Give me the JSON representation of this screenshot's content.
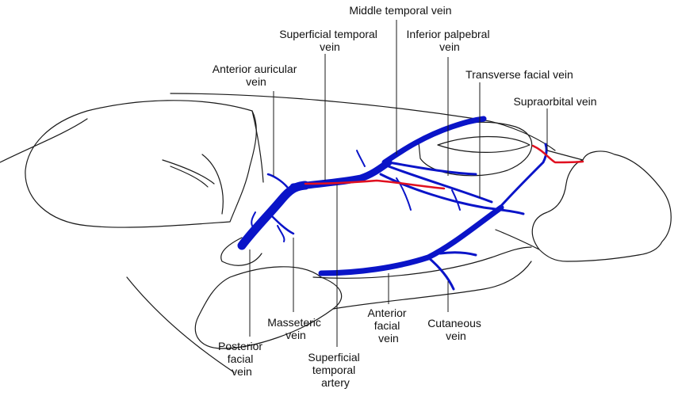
{
  "colors": {
    "vein": "#0a14c8",
    "artery": "#e01020",
    "outline": "#1a1a1a",
    "background": "#ffffff"
  },
  "labels": {
    "middle_temporal_vein": [
      "Middle temporal vein"
    ],
    "superficial_temporal_vein": [
      "Superficial temporal",
      "vein"
    ],
    "inferior_palpebral_vein": [
      "Inferior palpebral",
      "vein"
    ],
    "anterior_auricular_vein": [
      "Anterior auricular",
      "vein"
    ],
    "transverse_facial_vein": [
      "Transverse facial vein"
    ],
    "supraorbital_vein": [
      "Supraorbital vein"
    ],
    "masseteric_vein": [
      "Masseteric",
      "vein"
    ],
    "anterior_facial_vein": [
      "Anterior",
      "facial",
      "vein"
    ],
    "cutaneous_vein": [
      "Cutaneous",
      "vein"
    ],
    "posterior_facial_vein": [
      "Posterior",
      "facial",
      "vein"
    ],
    "superficial_temporal_artery": [
      "Superficial",
      "temporal",
      "artery"
    ]
  }
}
